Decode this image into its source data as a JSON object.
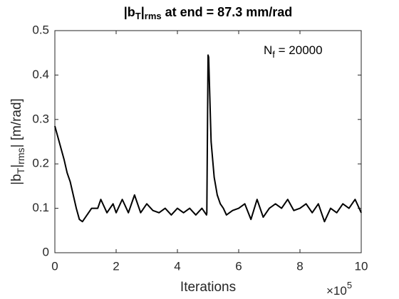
{
  "chart_data": {
    "type": "line",
    "title": [
      "|b",
      "T",
      "|",
      "rms",
      " at end = 87.3 mm/rad"
    ],
    "ylabel": [
      "|b",
      "T",
      "|",
      "rms",
      "| [m/rad]"
    ],
    "xlabel": "Iterations",
    "x_exponent": [
      "×10",
      "5"
    ],
    "annotation": [
      "N",
      "f",
      " = 20000"
    ],
    "x": [
      0,
      0.1,
      0.2,
      0.3,
      0.4,
      0.5,
      0.6,
      0.7,
      0.8,
      0.9,
      1.0,
      1.2,
      1.4,
      1.5,
      1.7,
      1.9,
      2.0,
      2.2,
      2.4,
      2.6,
      2.8,
      3.0,
      3.2,
      3.4,
      3.6,
      3.8,
      4.0,
      4.2,
      4.4,
      4.6,
      4.8,
      4.95,
      4.96,
      5.0,
      5.02,
      5.1,
      5.2,
      5.3,
      5.4,
      5.5,
      5.6,
      5.8,
      6.0,
      6.2,
      6.4,
      6.6,
      6.8,
      7.0,
      7.2,
      7.4,
      7.6,
      7.8,
      8.0,
      8.2,
      8.4,
      8.6,
      8.8,
      9.0,
      9.2,
      9.4,
      9.6,
      9.8,
      10.0
    ],
    "series": [
      {
        "color": "#000000",
        "values": [
          0.285,
          0.26,
          0.235,
          0.21,
          0.18,
          0.16,
          0.13,
          0.1,
          0.075,
          0.07,
          0.08,
          0.1,
          0.1,
          0.12,
          0.09,
          0.11,
          0.09,
          0.12,
          0.09,
          0.13,
          0.09,
          0.11,
          0.095,
          0.09,
          0.1,
          0.085,
          0.1,
          0.09,
          0.1,
          0.085,
          0.1,
          0.085,
          0.09,
          0.445,
          0.44,
          0.25,
          0.17,
          0.13,
          0.11,
          0.1,
          0.085,
          0.095,
          0.1,
          0.11,
          0.075,
          0.12,
          0.08,
          0.1,
          0.11,
          0.1,
          0.12,
          0.095,
          0.1,
          0.11,
          0.09,
          0.11,
          0.07,
          0.1,
          0.09,
          0.11,
          0.1,
          0.12,
          0.09
        ]
      }
    ],
    "xlim": [
      0,
      10
    ],
    "xticks": [
      0,
      2,
      4,
      6,
      8,
      10
    ],
    "ylim": [
      0,
      0.5
    ],
    "yticks": [
      0,
      0.1,
      0.2,
      0.3,
      0.4,
      0.5
    ]
  }
}
